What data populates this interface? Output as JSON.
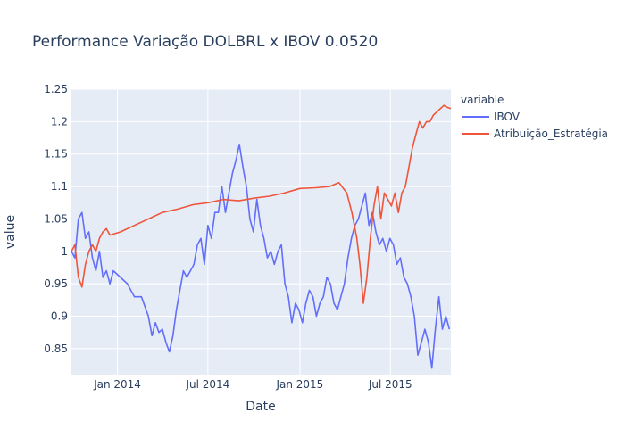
{
  "chart_data": {
    "type": "line",
    "title": "Performance Variação DOLBRL x IBOV 0.0520",
    "xlabel": "Date",
    "ylabel": "value",
    "x_ticks": [
      "Jan 2014",
      "Jul 2014",
      "Jan 2015",
      "Jul 2015"
    ],
    "x_tick_dates": [
      "2014-01-01",
      "2014-07-01",
      "2015-01-01",
      "2015-07-01"
    ],
    "xlim": [
      "2013-10-01",
      "2015-10-30"
    ],
    "y_ticks": [
      "0.85",
      "0.9",
      "0.95",
      "1",
      "1.05",
      "1.1",
      "1.15",
      "1.2",
      "1.25"
    ],
    "y_tick_values": [
      0.85,
      0.9,
      0.95,
      1.0,
      1.05,
      1.1,
      1.15,
      1.2,
      1.25
    ],
    "ylim": [
      0.81,
      1.25
    ],
    "legend": {
      "title": "variable",
      "placement": "top-right outside"
    },
    "grid": true,
    "colors": {
      "plot_bg": "#e5ecf6",
      "grid": "#ffffff",
      "IBOV": "#636efa",
      "Atribuicao": "#ef553b"
    },
    "series": [
      {
        "name": "IBOV",
        "color": "#636efa",
        "points": [
          [
            "2013-10-01",
            1.0
          ],
          [
            "2013-10-08",
            0.99
          ],
          [
            "2013-10-15",
            1.05
          ],
          [
            "2013-10-22",
            1.06
          ],
          [
            "2013-10-29",
            1.02
          ],
          [
            "2013-11-05",
            1.03
          ],
          [
            "2013-11-12",
            0.99
          ],
          [
            "2013-11-19",
            0.97
          ],
          [
            "2013-11-26",
            1.0
          ],
          [
            "2013-12-03",
            0.96
          ],
          [
            "2013-12-10",
            0.97
          ],
          [
            "2013-12-17",
            0.95
          ],
          [
            "2013-12-24",
            0.97
          ],
          [
            "2014-01-07",
            0.96
          ],
          [
            "2014-01-21",
            0.95
          ],
          [
            "2014-02-04",
            0.93
          ],
          [
            "2014-02-18",
            0.93
          ],
          [
            "2014-03-04",
            0.9
          ],
          [
            "2014-03-11",
            0.87
          ],
          [
            "2014-03-18",
            0.89
          ],
          [
            "2014-03-25",
            0.875
          ],
          [
            "2014-04-01",
            0.88
          ],
          [
            "2014-04-08",
            0.86
          ],
          [
            "2014-04-15",
            0.845
          ],
          [
            "2014-04-22",
            0.87
          ],
          [
            "2014-04-29",
            0.91
          ],
          [
            "2014-05-06",
            0.94
          ],
          [
            "2014-05-13",
            0.97
          ],
          [
            "2014-05-20",
            0.96
          ],
          [
            "2014-05-27",
            0.97
          ],
          [
            "2014-06-03",
            0.98
          ],
          [
            "2014-06-10",
            1.01
          ],
          [
            "2014-06-17",
            1.02
          ],
          [
            "2014-06-24",
            0.98
          ],
          [
            "2014-07-01",
            1.04
          ],
          [
            "2014-07-08",
            1.02
          ],
          [
            "2014-07-15",
            1.06
          ],
          [
            "2014-07-22",
            1.06
          ],
          [
            "2014-07-29",
            1.1
          ],
          [
            "2014-08-05",
            1.06
          ],
          [
            "2014-08-12",
            1.09
          ],
          [
            "2014-08-19",
            1.12
          ],
          [
            "2014-08-26",
            1.14
          ],
          [
            "2014-09-02",
            1.165
          ],
          [
            "2014-09-09",
            1.13
          ],
          [
            "2014-09-16",
            1.1
          ],
          [
            "2014-09-23",
            1.05
          ],
          [
            "2014-09-30",
            1.03
          ],
          [
            "2014-10-07",
            1.08
          ],
          [
            "2014-10-14",
            1.04
          ],
          [
            "2014-10-21",
            1.02
          ],
          [
            "2014-10-28",
            0.99
          ],
          [
            "2014-11-04",
            1.0
          ],
          [
            "2014-11-11",
            0.98
          ],
          [
            "2014-11-18",
            1.0
          ],
          [
            "2014-11-25",
            1.01
          ],
          [
            "2014-12-02",
            0.95
          ],
          [
            "2014-12-09",
            0.93
          ],
          [
            "2014-12-16",
            0.89
          ],
          [
            "2014-12-23",
            0.92
          ],
          [
            "2014-12-30",
            0.91
          ],
          [
            "2015-01-06",
            0.89
          ],
          [
            "2015-01-13",
            0.92
          ],
          [
            "2015-01-20",
            0.94
          ],
          [
            "2015-01-27",
            0.93
          ],
          [
            "2015-02-03",
            0.9
          ],
          [
            "2015-02-10",
            0.92
          ],
          [
            "2015-02-17",
            0.93
          ],
          [
            "2015-02-24",
            0.96
          ],
          [
            "2015-03-03",
            0.95
          ],
          [
            "2015-03-10",
            0.92
          ],
          [
            "2015-03-17",
            0.91
          ],
          [
            "2015-03-24",
            0.93
          ],
          [
            "2015-03-31",
            0.95
          ],
          [
            "2015-04-07",
            0.99
          ],
          [
            "2015-04-14",
            1.02
          ],
          [
            "2015-04-21",
            1.04
          ],
          [
            "2015-04-28",
            1.05
          ],
          [
            "2015-05-05",
            1.07
          ],
          [
            "2015-05-12",
            1.09
          ],
          [
            "2015-05-19",
            1.04
          ],
          [
            "2015-05-26",
            1.06
          ],
          [
            "2015-06-02",
            1.03
          ],
          [
            "2015-06-09",
            1.01
          ],
          [
            "2015-06-16",
            1.02
          ],
          [
            "2015-06-23",
            1.0
          ],
          [
            "2015-06-30",
            1.02
          ],
          [
            "2015-07-07",
            1.01
          ],
          [
            "2015-07-14",
            0.98
          ],
          [
            "2015-07-21",
            0.99
          ],
          [
            "2015-07-28",
            0.96
          ],
          [
            "2015-08-04",
            0.95
          ],
          [
            "2015-08-11",
            0.93
          ],
          [
            "2015-08-18",
            0.9
          ],
          [
            "2015-08-25",
            0.84
          ],
          [
            "2015-09-01",
            0.86
          ],
          [
            "2015-09-08",
            0.88
          ],
          [
            "2015-09-15",
            0.86
          ],
          [
            "2015-09-22",
            0.82
          ],
          [
            "2015-09-29",
            0.88
          ],
          [
            "2015-10-06",
            0.93
          ],
          [
            "2015-10-13",
            0.88
          ],
          [
            "2015-10-20",
            0.9
          ],
          [
            "2015-10-27",
            0.88
          ]
        ]
      },
      {
        "name": "Atribuição_Estratégia",
        "color": "#ef553b",
        "points": [
          [
            "2013-10-01",
            1.0
          ],
          [
            "2013-10-08",
            1.01
          ],
          [
            "2013-10-15",
            0.96
          ],
          [
            "2013-10-22",
            0.945
          ],
          [
            "2013-10-29",
            0.98
          ],
          [
            "2013-11-05",
            1.0
          ],
          [
            "2013-11-12",
            1.01
          ],
          [
            "2013-11-19",
            1.0
          ],
          [
            "2013-11-26",
            1.02
          ],
          [
            "2013-12-03",
            1.03
          ],
          [
            "2013-12-10",
            1.035
          ],
          [
            "2013-12-17",
            1.025
          ],
          [
            "2014-01-07",
            1.03
          ],
          [
            "2014-02-04",
            1.04
          ],
          [
            "2014-03-04",
            1.05
          ],
          [
            "2014-04-01",
            1.06
          ],
          [
            "2014-05-01",
            1.065
          ],
          [
            "2014-06-01",
            1.072
          ],
          [
            "2014-07-01",
            1.075
          ],
          [
            "2014-08-01",
            1.08
          ],
          [
            "2014-09-01",
            1.078
          ],
          [
            "2014-10-01",
            1.082
          ],
          [
            "2014-11-01",
            1.085
          ],
          [
            "2014-12-01",
            1.09
          ],
          [
            "2015-01-01",
            1.097
          ],
          [
            "2015-02-01",
            1.098
          ],
          [
            "2015-03-01",
            1.1
          ],
          [
            "2015-03-20",
            1.106
          ],
          [
            "2015-04-05",
            1.09
          ],
          [
            "2015-04-15",
            1.06
          ],
          [
            "2015-04-25",
            1.02
          ],
          [
            "2015-05-01",
            0.98
          ],
          [
            "2015-05-08",
            0.92
          ],
          [
            "2015-05-15",
            0.96
          ],
          [
            "2015-05-22",
            1.02
          ],
          [
            "2015-05-29",
            1.07
          ],
          [
            "2015-06-05",
            1.1
          ],
          [
            "2015-06-12",
            1.05
          ],
          [
            "2015-06-19",
            1.09
          ],
          [
            "2015-06-26",
            1.08
          ],
          [
            "2015-07-03",
            1.07
          ],
          [
            "2015-07-10",
            1.09
          ],
          [
            "2015-07-17",
            1.06
          ],
          [
            "2015-07-24",
            1.09
          ],
          [
            "2015-07-31",
            1.1
          ],
          [
            "2015-08-07",
            1.13
          ],
          [
            "2015-08-14",
            1.16
          ],
          [
            "2015-08-21",
            1.18
          ],
          [
            "2015-08-28",
            1.2
          ],
          [
            "2015-09-04",
            1.19
          ],
          [
            "2015-09-11",
            1.2
          ],
          [
            "2015-09-18",
            1.2
          ],
          [
            "2015-09-25",
            1.21
          ],
          [
            "2015-10-02",
            1.215
          ],
          [
            "2015-10-09",
            1.22
          ],
          [
            "2015-10-16",
            1.225
          ],
          [
            "2015-10-23",
            1.222
          ],
          [
            "2015-10-30",
            1.22
          ]
        ]
      }
    ]
  }
}
